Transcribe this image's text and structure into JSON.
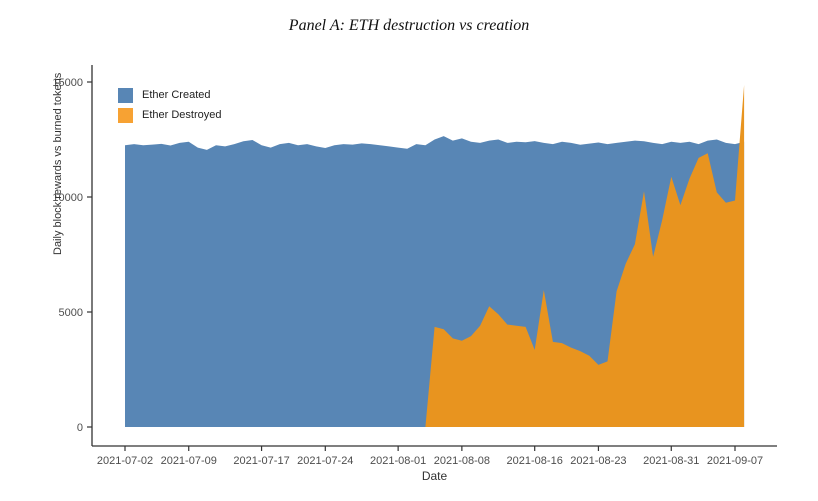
{
  "title": "Panel A: ETH destruction vs creation",
  "xlabel": "Date",
  "ylabel": "Daily block rewards vs burned tokens",
  "legend": {
    "items": [
      {
        "label": "Ether Created",
        "color": "#5886b5"
      },
      {
        "label": "Ether Destroyed",
        "color": "#f7a233"
      }
    ]
  },
  "colors": {
    "axis_line": "#333333",
    "tick_text": "#4d4d4d"
  },
  "chart_data": {
    "type": "area",
    "mode": "overlay",
    "title": "Panel A: ETH destruction vs creation",
    "xlabel": "Date",
    "ylabel": "Daily block rewards vs burned tokens",
    "ylim": [
      0,
      15000
    ],
    "yticks": [
      0,
      5000,
      10000,
      15000
    ],
    "xtick_labels": [
      "2021-07-02",
      "2021-07-09",
      "2021-07-17",
      "2021-07-24",
      "2021-08-01",
      "2021-08-08",
      "2021-08-16",
      "2021-08-23",
      "2021-08-31",
      "2021-09-07"
    ],
    "grid": false,
    "legend_position": "top-left",
    "x": [
      "2021-07-02",
      "2021-07-03",
      "2021-07-04",
      "2021-07-05",
      "2021-07-06",
      "2021-07-07",
      "2021-07-08",
      "2021-07-09",
      "2021-07-10",
      "2021-07-11",
      "2021-07-12",
      "2021-07-13",
      "2021-07-14",
      "2021-07-15",
      "2021-07-16",
      "2021-07-17",
      "2021-07-18",
      "2021-07-19",
      "2021-07-20",
      "2021-07-21",
      "2021-07-22",
      "2021-07-23",
      "2021-07-24",
      "2021-07-25",
      "2021-07-26",
      "2021-07-27",
      "2021-07-28",
      "2021-07-29",
      "2021-07-30",
      "2021-07-31",
      "2021-08-01",
      "2021-08-02",
      "2021-08-03",
      "2021-08-04",
      "2021-08-05",
      "2021-08-06",
      "2021-08-07",
      "2021-08-08",
      "2021-08-09",
      "2021-08-10",
      "2021-08-11",
      "2021-08-12",
      "2021-08-13",
      "2021-08-14",
      "2021-08-15",
      "2021-08-16",
      "2021-08-17",
      "2021-08-18",
      "2021-08-19",
      "2021-08-20",
      "2021-08-21",
      "2021-08-22",
      "2021-08-23",
      "2021-08-24",
      "2021-08-25",
      "2021-08-26",
      "2021-08-27",
      "2021-08-28",
      "2021-08-29",
      "2021-08-30",
      "2021-08-31",
      "2021-09-01",
      "2021-09-02",
      "2021-09-03",
      "2021-09-04",
      "2021-09-05",
      "2021-09-06",
      "2021-09-07",
      "2021-09-08"
    ],
    "series": [
      {
        "name": "Ether Created",
        "color": "#5886b5",
        "values": [
          12250,
          12300,
          12250,
          12280,
          12310,
          12240,
          12350,
          12400,
          12150,
          12050,
          12250,
          12200,
          12300,
          12420,
          12480,
          12250,
          12150,
          12300,
          12350,
          12250,
          12300,
          12200,
          12130,
          12250,
          12300,
          12280,
          12330,
          12300,
          12250,
          12200,
          12150,
          12100,
          12300,
          12250,
          12500,
          12650,
          12450,
          12550,
          12400,
          12350,
          12450,
          12500,
          12350,
          12400,
          12380,
          12430,
          12350,
          12300,
          12400,
          12350,
          12270,
          12320,
          12370,
          12300,
          12350,
          12400,
          12450,
          12420,
          12350,
          12300,
          12400,
          12350,
          12400,
          12300,
          12450,
          12500,
          12350,
          12300,
          12400
        ]
      },
      {
        "name": "Ether Destroyed",
        "color": "#e8941f",
        "values": [
          0,
          0,
          0,
          0,
          0,
          0,
          0,
          0,
          0,
          0,
          0,
          0,
          0,
          0,
          0,
          0,
          0,
          0,
          0,
          0,
          0,
          0,
          0,
          0,
          0,
          0,
          0,
          0,
          0,
          0,
          0,
          0,
          0,
          0,
          4350,
          4250,
          3850,
          3750,
          3950,
          4400,
          5250,
          4900,
          4450,
          4400,
          4350,
          3350,
          5950,
          3700,
          3650,
          3450,
          3300,
          3100,
          2700,
          2850,
          5900,
          7100,
          7950,
          10250,
          7400,
          9000,
          10880,
          9650,
          10800,
          11700,
          11900,
          10200,
          9750,
          9850,
          14870
        ]
      }
    ]
  }
}
